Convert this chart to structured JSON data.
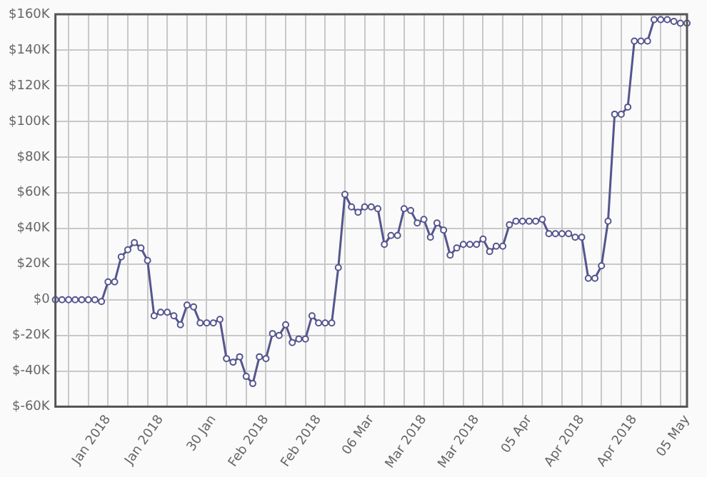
{
  "chart_data": {
    "type": "line",
    "categories": [
      null,
      null,
      null,
      null,
      null,
      null,
      null,
      null,
      "Jan 2018",
      null,
      null,
      null,
      null,
      null,
      null,
      null,
      "Jan 2018",
      null,
      null,
      null,
      null,
      null,
      null,
      null,
      "30 Jan",
      null,
      null,
      null,
      null,
      null,
      null,
      null,
      "Feb 2018",
      null,
      null,
      null,
      null,
      null,
      null,
      null,
      "Feb 2018",
      null,
      null,
      null,
      null,
      null,
      null,
      null,
      "06 Mar",
      null,
      null,
      null,
      null,
      null,
      null,
      null,
      "Mar 2018",
      null,
      null,
      null,
      null,
      null,
      null,
      null,
      "Mar 2018",
      null,
      null,
      null,
      null,
      null,
      null,
      null,
      "05 Apr",
      null,
      null,
      null,
      null,
      null,
      null,
      null,
      "Apr 2018",
      null,
      null,
      null,
      null,
      null,
      null,
      null,
      "Apr 2018",
      null,
      null,
      null,
      null,
      null,
      null,
      null,
      "05 May"
    ],
    "series": [
      {
        "color": "#55558f",
        "values": [
          0,
          0,
          0,
          0,
          0,
          0,
          0,
          -1,
          10,
          10,
          24,
          28,
          32,
          29,
          22,
          -9,
          -7,
          -7,
          -9,
          -14,
          -3,
          -4,
          -13,
          -13,
          -13,
          -11,
          -33,
          -35,
          -32,
          -43,
          -47,
          -32,
          -33,
          -19,
          -20,
          -14,
          -24,
          -22,
          -22,
          -9,
          -13,
          -13,
          -13,
          18,
          59,
          52,
          49,
          52,
          52,
          51,
          31,
          36,
          36,
          51,
          50,
          43,
          45,
          35,
          43,
          39,
          25,
          29,
          31,
          31,
          31,
          34,
          27,
          30,
          30,
          42,
          44,
          44,
          44,
          44,
          45,
          37,
          37,
          37,
          37,
          35,
          35,
          12,
          12,
          19,
          44,
          104,
          104,
          108,
          145,
          145,
          145,
          157,
          157,
          157,
          156,
          155,
          155
        ]
      }
    ],
    "ylim": [
      -60,
      160
    ],
    "yticks": [
      {
        "value": -60,
        "label": "$-60K"
      },
      {
        "value": -40,
        "label": "$-40K"
      },
      {
        "value": -20,
        "label": "$-20K"
      },
      {
        "value": 0,
        "label": "$0"
      },
      {
        "value": 20,
        "label": "$20K"
      },
      {
        "value": 40,
        "label": "$40K"
      },
      {
        "value": 60,
        "label": "$60K"
      },
      {
        "value": 80,
        "label": "$80K"
      },
      {
        "value": 100,
        "label": "$100K"
      },
      {
        "value": 120,
        "label": "$120K"
      },
      {
        "value": 140,
        "label": "$140K"
      },
      {
        "value": 160,
        "label": "$160K"
      }
    ],
    "grid": true,
    "marker": "circle",
    "line_style": "solid"
  }
}
